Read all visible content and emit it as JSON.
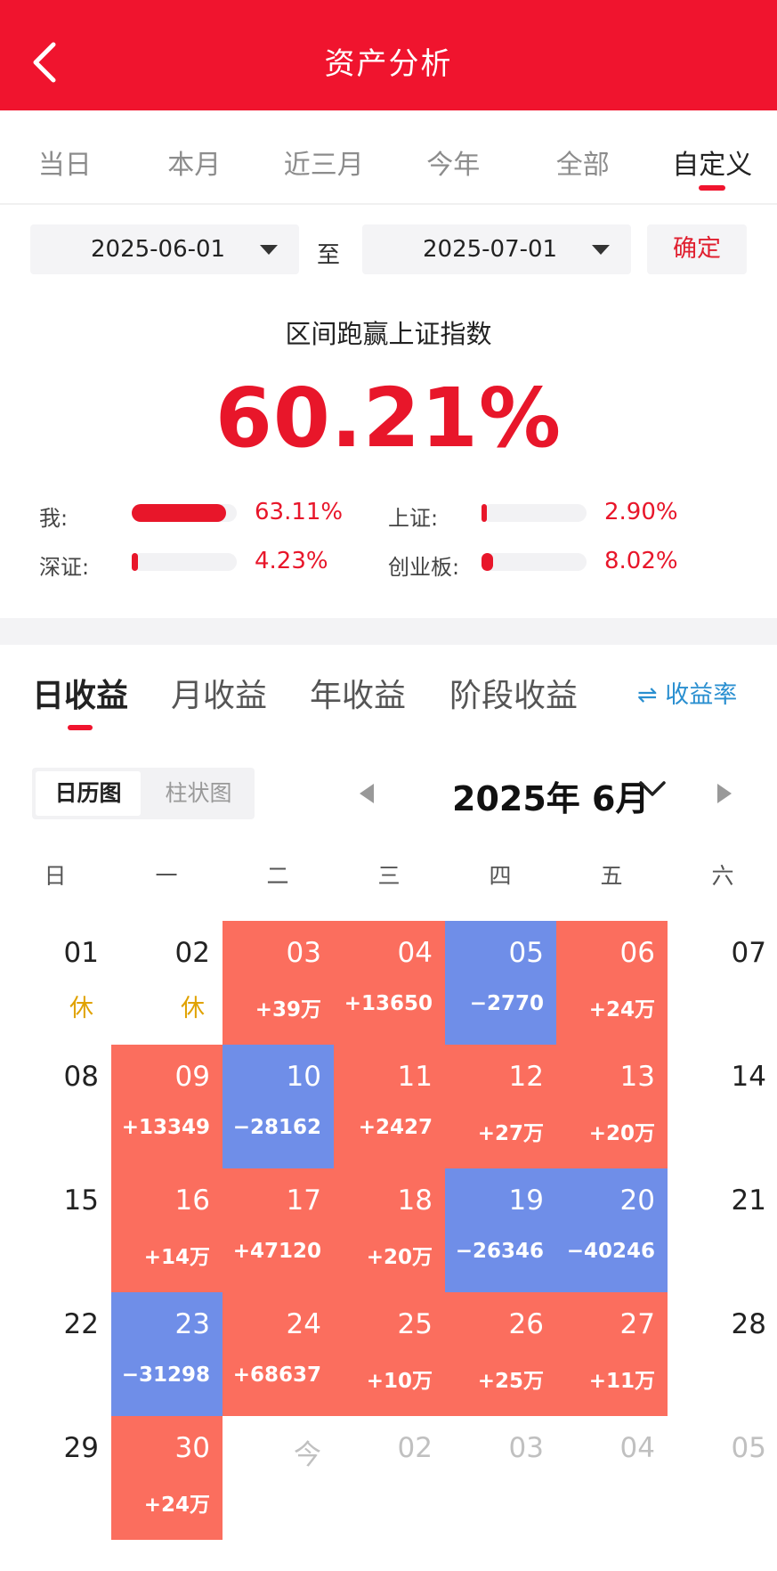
{
  "header": {
    "title": "资产分析"
  },
  "period_tabs": [
    "当日",
    "本月",
    "近三月",
    "今年",
    "全部",
    "自定义"
  ],
  "active_period": "自定义",
  "date_range": {
    "start": "2025-06-01",
    "separator": "至",
    "end": "2025-07-01",
    "confirm_label": "确定"
  },
  "summary": {
    "title": "区间跑赢上证指数",
    "value": "60.21%"
  },
  "comparisons": [
    {
      "label": "我:",
      "value": "63.11%",
      "fill": 0.9
    },
    {
      "label": "上证:",
      "value": "2.90%",
      "fill": 0.04
    },
    {
      "label": "深证:",
      "value": "4.23%",
      "fill": 0.06
    },
    {
      "label": "创业板:",
      "value": "8.02%",
      "fill": 0.11
    }
  ],
  "profit_tabs": [
    "日收益",
    "月收益",
    "年收益",
    "阶段收益"
  ],
  "active_profit_tab": "日收益",
  "rate_toggle": "⇌ 收益率",
  "view_switch": {
    "calendar": "日历图",
    "bar": "柱状图",
    "active": "日历图"
  },
  "calendar": {
    "month_label": "2025年 6月",
    "weekdays": [
      "日",
      "一",
      "二",
      "三",
      "四",
      "五",
      "六"
    ],
    "rows": [
      [
        {
          "date": "01",
          "note": "休"
        },
        {
          "date": "02",
          "note": "休"
        },
        {
          "date": "03",
          "value": "+39万",
          "type": "pos"
        },
        {
          "date": "04",
          "value": "+13650",
          "type": "pos"
        },
        {
          "date": "05",
          "value": "−2770",
          "type": "neg"
        },
        {
          "date": "06",
          "value": "+24万",
          "type": "pos"
        },
        {
          "date": "07"
        }
      ],
      [
        {
          "date": "08"
        },
        {
          "date": "09",
          "value": "+13349",
          "type": "pos"
        },
        {
          "date": "10",
          "value": "−28162",
          "type": "neg"
        },
        {
          "date": "11",
          "value": "+2427",
          "type": "pos"
        },
        {
          "date": "12",
          "value": "+27万",
          "type": "pos"
        },
        {
          "date": "13",
          "value": "+20万",
          "type": "pos"
        },
        {
          "date": "14"
        }
      ],
      [
        {
          "date": "15"
        },
        {
          "date": "16",
          "value": "+14万",
          "type": "pos"
        },
        {
          "date": "17",
          "value": "+47120",
          "type": "pos"
        },
        {
          "date": "18",
          "value": "+20万",
          "type": "pos"
        },
        {
          "date": "19",
          "value": "−26346",
          "type": "neg"
        },
        {
          "date": "20",
          "value": "−40246",
          "type": "neg"
        },
        {
          "date": "21"
        }
      ],
      [
        {
          "date": "22"
        },
        {
          "date": "23",
          "value": "−31298",
          "type": "neg"
        },
        {
          "date": "24",
          "value": "+68637",
          "type": "pos"
        },
        {
          "date": "25",
          "value": "+10万",
          "type": "pos"
        },
        {
          "date": "26",
          "value": "+25万",
          "type": "pos"
        },
        {
          "date": "27",
          "value": "+11万",
          "type": "pos"
        },
        {
          "date": "28"
        }
      ],
      [
        {
          "date": "29"
        },
        {
          "date": "30",
          "value": "+24万",
          "type": "pos"
        },
        {
          "date": "今",
          "type": "future"
        },
        {
          "date": "02",
          "type": "future"
        },
        {
          "date": "03",
          "type": "future"
        },
        {
          "date": "04",
          "type": "future"
        },
        {
          "date": "05",
          "type": "future"
        }
      ]
    ]
  },
  "colors": {
    "brand_red": "#f0142e",
    "profit": "#fb6e5e",
    "loss": "#6f8ee8",
    "holiday": "#e0a200",
    "link": "#2a8fd0"
  }
}
